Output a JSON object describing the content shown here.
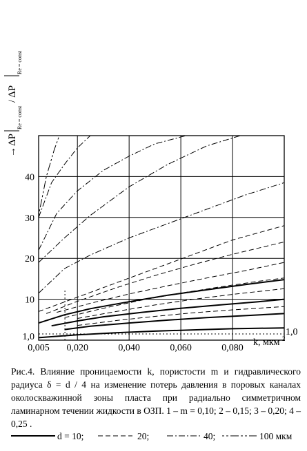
{
  "chart_data": {
    "type": "line",
    "xlabel": "k, мкм",
    "xlabel_exp": "2",
    "ylabel_arrow": "→",
    "ylabel": "ΔP",
    "ylabel_sub1": "Re = const",
    "ylabel_mid": " / ΔP",
    "ylabel_sub2": "Re = const",
    "right_tick": "1,0",
    "x_ticks": [
      {
        "v": 0.005,
        "t": "0,005"
      },
      {
        "v": 0.02,
        "t": "0,020"
      },
      {
        "v": 0.04,
        "t": "0,040"
      },
      {
        "v": 0.06,
        "t": "0,060"
      },
      {
        "v": 0.08,
        "t": "0,080"
      }
    ],
    "y_ticks": [
      {
        "v": 1,
        "t": "1,0"
      },
      {
        "v": 10,
        "t": "10"
      },
      {
        "v": 20,
        "t": "20"
      },
      {
        "v": 30,
        "t": "30"
      },
      {
        "v": 40,
        "t": "40"
      }
    ],
    "xlim": [
      0.005,
      0.1
    ],
    "ylim": [
      0,
      50
    ],
    "grid": true,
    "series": [
      {
        "style": "solid",
        "x": [
          0.005,
          0.015,
          0.025,
          0.04,
          0.055,
          0.07,
          0.085,
          0.1
        ],
        "y": [
          4.2,
          6.2,
          7.7,
          9.4,
          11.0,
          12.3,
          13.6,
          14.8
        ]
      },
      {
        "style": "solid",
        "x": [
          0.01,
          0.02,
          0.03,
          0.045,
          0.06,
          0.075,
          0.09,
          0.1
        ],
        "y": [
          3.5,
          4.7,
          5.7,
          6.8,
          7.8,
          8.6,
          9.4,
          10.0
        ]
      },
      {
        "style": "solid",
        "x": [
          0.015,
          0.025,
          0.04,
          0.055,
          0.07,
          0.085,
          0.1
        ],
        "y": [
          2.6,
          3.4,
          4.2,
          4.9,
          5.5,
          6.0,
          6.5
        ]
      },
      {
        "style": "solid",
        "x": [
          0.005,
          0.02,
          0.035,
          0.05,
          0.065,
          0.08,
          0.1
        ],
        "y": [
          0.6,
          1.3,
          1.8,
          2.2,
          2.5,
          2.8,
          3.0
        ]
      },
      {
        "style": "dash",
        "x": [
          0.005,
          0.02,
          0.035,
          0.05,
          0.065,
          0.08,
          0.1
        ],
        "y": [
          7.0,
          10.5,
          14.0,
          17.5,
          21.0,
          24.5,
          28.0
        ]
      },
      {
        "style": "dash",
        "x": [
          0.008,
          0.02,
          0.035,
          0.05,
          0.065,
          0.08,
          0.1
        ],
        "y": [
          6.5,
          9.5,
          12.8,
          15.8,
          18.5,
          21.0,
          24.0
        ]
      },
      {
        "style": "dash",
        "x": [
          0.012,
          0.025,
          0.04,
          0.055,
          0.07,
          0.085,
          0.1
        ],
        "y": [
          6.8,
          9.0,
          11.3,
          13.3,
          15.2,
          17.0,
          19.0
        ]
      },
      {
        "style": "dash",
        "x": [
          0.015,
          0.03,
          0.045,
          0.06,
          0.075,
          0.09,
          0.1
        ],
        "y": [
          5.5,
          7.8,
          9.8,
          11.5,
          13.0,
          14.4,
          15.2
        ]
      },
      {
        "style": "dash",
        "x": [
          0.02,
          0.035,
          0.05,
          0.065,
          0.08,
          0.1
        ],
        "y": [
          5.3,
          7.0,
          8.6,
          10.0,
          11.2,
          12.6
        ]
      },
      {
        "style": "dash",
        "x": [
          0.02,
          0.035,
          0.05,
          0.065,
          0.08,
          0.1
        ],
        "y": [
          3.6,
          4.8,
          5.8,
          6.7,
          7.4,
          8.2
        ]
      },
      {
        "style": "dashdot",
        "x": [
          0.005,
          0.015,
          0.025,
          0.04,
          0.055,
          0.07,
          0.083
        ],
        "y": [
          19.0,
          25.0,
          30.5,
          37.5,
          43.0,
          47.5,
          50.0
        ]
      },
      {
        "style": "dashdot",
        "x": [
          0.005,
          0.015,
          0.025,
          0.04,
          0.055,
          0.07,
          0.085,
          0.1
        ],
        "y": [
          11.5,
          17.5,
          20.8,
          25.0,
          28.5,
          32.0,
          35.5,
          38.5
        ]
      },
      {
        "style": "dashdot",
        "x": [
          0.005,
          0.012,
          0.02,
          0.03,
          0.04,
          0.05,
          0.062
        ],
        "y": [
          22.0,
          31.0,
          36.5,
          41.5,
          45.0,
          48.0,
          50.0
        ]
      },
      {
        "style": "dashdot",
        "x": [
          0.005,
          0.01,
          0.015,
          0.02,
          0.025
        ],
        "y": [
          30.0,
          38.5,
          43.0,
          47.0,
          50.0
        ]
      },
      {
        "style": "dashdot2",
        "x": [
          0.005,
          0.008,
          0.011,
          0.013
        ],
        "y": [
          30.5,
          40.0,
          46.5,
          50.0
        ]
      }
    ]
  },
  "caption": "Рис.4. Влияние проницаемости k, пористости m и гидравлического радиуса δ = d / 4 на изменение потерь давления в поровых каналах околоскважинной зоны пласта при радиально симметричном ламинарном течении жидкости в ОЗП. 1 – m = 0,10; 2 – 0,15; 3 – 0,20; 4 – 0,25 .",
  "legend": [
    {
      "style": "solid",
      "label": "d = 10;"
    },
    {
      "style": "dash",
      "label": "20;"
    },
    {
      "style": "dashdot",
      "label": "40;"
    },
    {
      "style": "dashdot2",
      "label": "100 мкм"
    }
  ]
}
